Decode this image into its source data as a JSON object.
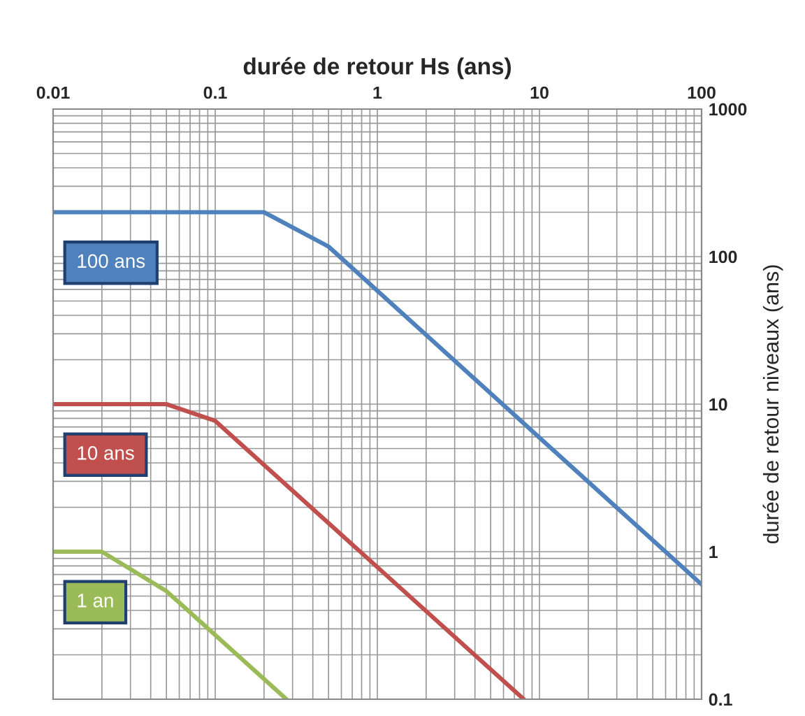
{
  "chart_data": {
    "type": "line",
    "xlabel": "durée de retour Hs (ans)",
    "ylabel": "durée de retour niveaux (ans)",
    "log": "xy",
    "grid": true,
    "legend": false,
    "marker": "none",
    "line_style": "solid",
    "xlim": [
      0.01,
      100
    ],
    "xticks": [
      0.01,
      0.1,
      1,
      10,
      100
    ],
    "ylim": [
      0.1,
      1000
    ],
    "yticks": [
      0.1,
      1,
      10,
      100,
      1000
    ],
    "series": [
      {
        "name": "100 ans",
        "color": "#4f81bd",
        "x": [
          0.01,
          0.2,
          0.5,
          100
        ],
        "values": [
          200,
          200,
          117,
          0.6
        ]
      },
      {
        "name": "10 ans",
        "color": "#c0504d",
        "x": [
          0.01,
          0.05,
          0.1,
          8
        ],
        "values": [
          10,
          10,
          7.7,
          0.1
        ]
      },
      {
        "name": "1 an",
        "color": "#9bbb59",
        "x": [
          0.01,
          0.02,
          0.05,
          0.275
        ],
        "values": [
          1,
          1,
          0.54,
          0.1
        ]
      }
    ]
  }
}
